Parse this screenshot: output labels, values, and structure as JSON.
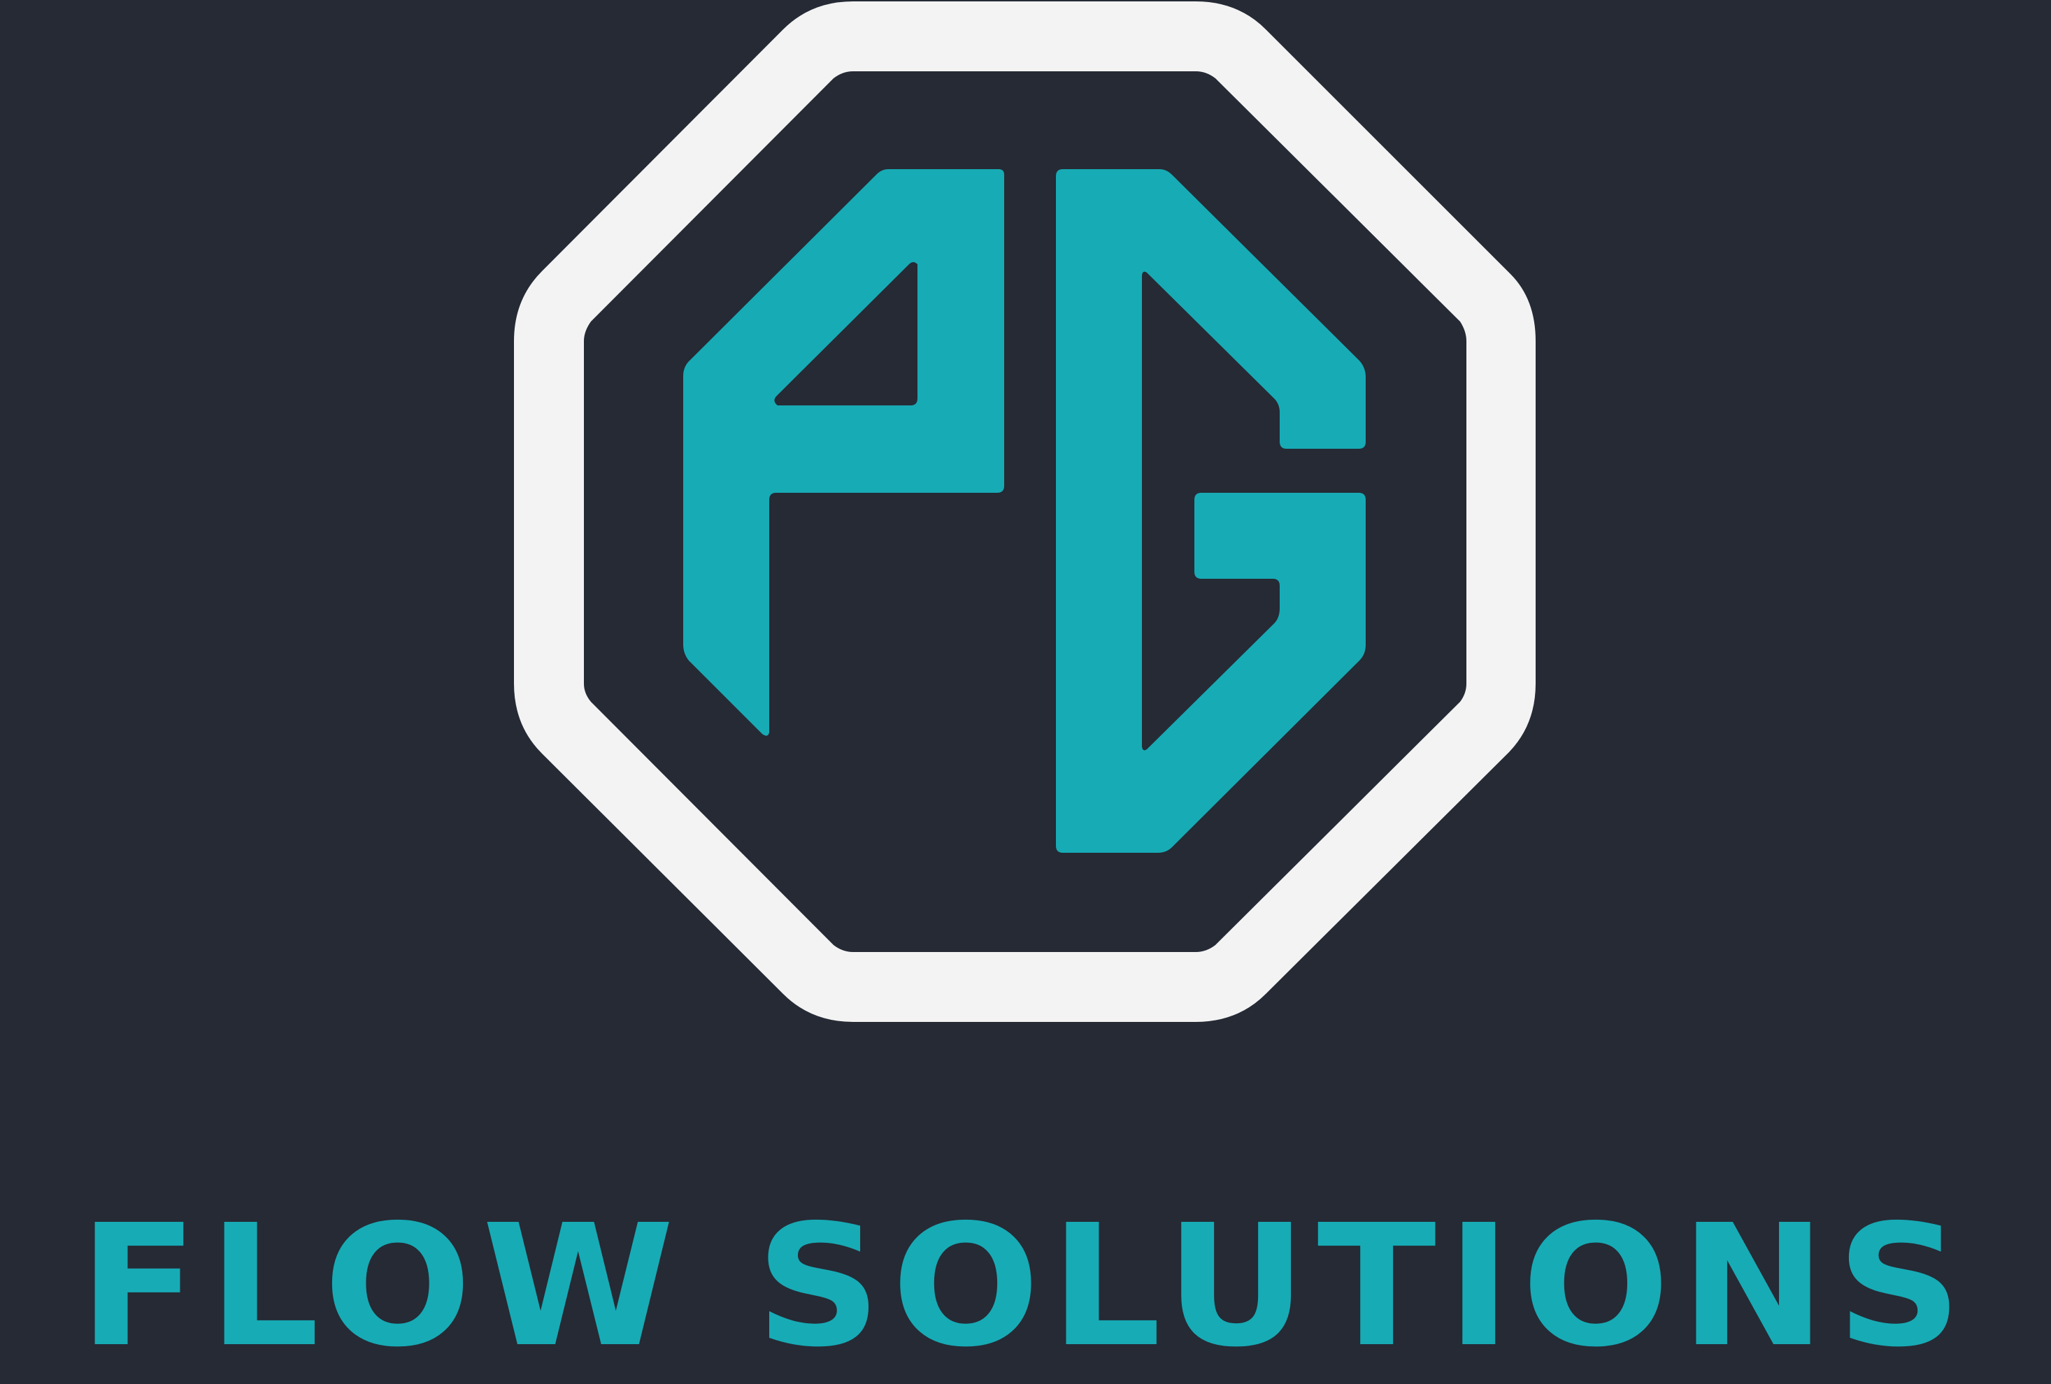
{
  "brand": {
    "wordmark": "FLOW SOLUTIONS",
    "monogram": "PG",
    "emblem_icon": "octagon-emblem-icon"
  },
  "colors": {
    "background": "#252a35",
    "accent": "#17abb5",
    "frame": "#f3f3f3"
  }
}
